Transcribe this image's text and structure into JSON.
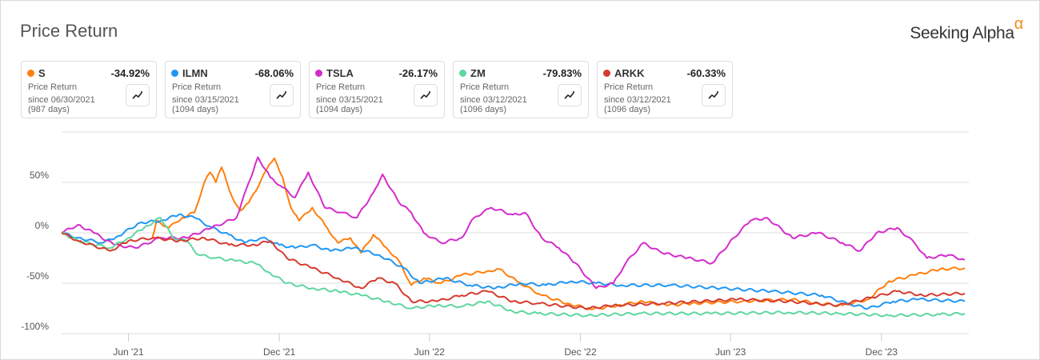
{
  "header": {
    "title": "Price Return",
    "logo": "Seeking Alpha",
    "logo_mark": "α"
  },
  "cards": [
    {
      "symbol": "S",
      "value": "-34.92%",
      "label": "Price Return",
      "since": "since 06/30/2021",
      "days": "(987 days)",
      "color": "#ff7f0e"
    },
    {
      "symbol": "ILMN",
      "value": "-68.06%",
      "label": "Price Return",
      "since": "since 03/15/2021",
      "days": "(1094 days)",
      "color": "#2196f3"
    },
    {
      "symbol": "TSLA",
      "value": "-26.17%",
      "label": "Price Return",
      "since": "since 03/15/2021",
      "days": "(1094 days)",
      "color": "#d42ccc"
    },
    {
      "symbol": "ZM",
      "value": "-79.83%",
      "label": "Price Return",
      "since": "since 03/12/2021",
      "days": "(1096 days)",
      "color": "#5fd6a0"
    },
    {
      "symbol": "ARKK",
      "value": "-60.33%",
      "label": "Price Return",
      "since": "since 03/12/2021",
      "days": "(1096 days)",
      "color": "#d63b30"
    }
  ],
  "chart_data": {
    "type": "line",
    "title": "Price Return",
    "xlim": [
      "2021-03-12",
      "2024-03-12"
    ],
    "ylim": [
      -100,
      100
    ],
    "yticks": [
      {
        "v": 50,
        "label": "50%"
      },
      {
        "v": 0,
        "label": "0%"
      },
      {
        "v": -50,
        "label": "-50%"
      },
      {
        "v": -100,
        "label": "-100%"
      }
    ],
    "xticks": [
      {
        "d": "2021-06-01",
        "label": "Jun '21"
      },
      {
        "d": "2021-12-01",
        "label": "Dec '21"
      },
      {
        "d": "2022-06-01",
        "label": "Jun '22"
      },
      {
        "d": "2022-12-01",
        "label": "Dec '22"
      },
      {
        "d": "2023-06-01",
        "label": "Jun '23"
      },
      {
        "d": "2023-12-01",
        "label": "Dec '23"
      }
    ],
    "grid": true,
    "series": [
      {
        "name": "S",
        "color": "#ff7f0e",
        "points": [
          [
            "2021-06-30",
            -5
          ],
          [
            "2021-07-05",
            12
          ],
          [
            "2021-07-20",
            5
          ],
          [
            "2021-08-05",
            15
          ],
          [
            "2021-08-20",
            20
          ],
          [
            "2021-09-01",
            50
          ],
          [
            "2021-09-08",
            60
          ],
          [
            "2021-09-15",
            50
          ],
          [
            "2021-09-22",
            65
          ],
          [
            "2021-10-05",
            35
          ],
          [
            "2021-10-15",
            22
          ],
          [
            "2021-10-25",
            30
          ],
          [
            "2021-11-05",
            45
          ],
          [
            "2021-11-15",
            62
          ],
          [
            "2021-11-25",
            74
          ],
          [
            "2021-12-05",
            55
          ],
          [
            "2021-12-15",
            25
          ],
          [
            "2021-12-25",
            12
          ],
          [
            "2022-01-10",
            25
          ],
          [
            "2022-01-25",
            8
          ],
          [
            "2022-02-10",
            -10
          ],
          [
            "2022-02-25",
            -5
          ],
          [
            "2022-03-10",
            -20
          ],
          [
            "2022-03-25",
            -2
          ],
          [
            "2022-04-10",
            -15
          ],
          [
            "2022-04-25",
            -28
          ],
          [
            "2022-05-10",
            -52
          ],
          [
            "2022-05-25",
            -45
          ],
          [
            "2022-06-15",
            -50
          ],
          [
            "2022-07-10",
            -42
          ],
          [
            "2022-08-10",
            -38
          ],
          [
            "2022-08-25",
            -36
          ],
          [
            "2022-09-15",
            -48
          ],
          [
            "2022-10-15",
            -62
          ],
          [
            "2022-11-15",
            -70
          ],
          [
            "2022-12-15",
            -76
          ],
          [
            "2023-01-15",
            -72
          ],
          [
            "2023-02-15",
            -68
          ],
          [
            "2023-03-15",
            -72
          ],
          [
            "2023-04-15",
            -70
          ],
          [
            "2023-06-15",
            -68
          ],
          [
            "2023-08-15",
            -66
          ],
          [
            "2023-09-15",
            -70
          ],
          [
            "2023-10-15",
            -72
          ],
          [
            "2023-11-15",
            -66
          ],
          [
            "2023-12-10",
            -48
          ],
          [
            "2024-01-10",
            -42
          ],
          [
            "2024-02-10",
            -36
          ],
          [
            "2024-03-11",
            -35
          ]
        ]
      },
      {
        "name": "ILMN",
        "color": "#2196f3",
        "points": [
          [
            "2021-03-12",
            0
          ],
          [
            "2021-04-01",
            -5
          ],
          [
            "2021-05-01",
            -10
          ],
          [
            "2021-05-20",
            -3
          ],
          [
            "2021-06-15",
            10
          ],
          [
            "2021-07-10",
            12
          ],
          [
            "2021-08-01",
            18
          ],
          [
            "2021-08-20",
            15
          ],
          [
            "2021-09-10",
            5
          ],
          [
            "2021-10-01",
            -2
          ],
          [
            "2021-10-20",
            -10
          ],
          [
            "2021-11-10",
            -5
          ],
          [
            "2021-12-01",
            -12
          ],
          [
            "2021-12-20",
            -15
          ],
          [
            "2022-01-10",
            -12
          ],
          [
            "2022-02-01",
            -18
          ],
          [
            "2022-03-01",
            -15
          ],
          [
            "2022-04-01",
            -22
          ],
          [
            "2022-05-01",
            -35
          ],
          [
            "2022-05-20",
            -50
          ],
          [
            "2022-06-20",
            -45
          ],
          [
            "2022-07-20",
            -52
          ],
          [
            "2022-08-20",
            -55
          ],
          [
            "2022-09-20",
            -50
          ],
          [
            "2022-10-20",
            -52
          ],
          [
            "2022-11-20",
            -48
          ],
          [
            "2022-12-20",
            -50
          ],
          [
            "2023-01-20",
            -52
          ],
          [
            "2023-03-20",
            -52
          ],
          [
            "2023-05-20",
            -55
          ],
          [
            "2023-07-20",
            -58
          ],
          [
            "2023-09-20",
            -62
          ],
          [
            "2023-10-20",
            -70
          ],
          [
            "2023-11-15",
            -75
          ],
          [
            "2023-12-15",
            -68
          ],
          [
            "2024-01-15",
            -66
          ],
          [
            "2024-03-11",
            -68
          ]
        ]
      },
      {
        "name": "TSLA",
        "color": "#d42ccc",
        "points": [
          [
            "2021-03-12",
            0
          ],
          [
            "2021-04-01",
            8
          ],
          [
            "2021-04-20",
            0
          ],
          [
            "2021-05-15",
            -12
          ],
          [
            "2021-06-10",
            -15
          ],
          [
            "2021-07-10",
            -5
          ],
          [
            "2021-08-10",
            -5
          ],
          [
            "2021-09-10",
            5
          ],
          [
            "2021-10-10",
            15
          ],
          [
            "2021-10-25",
            50
          ],
          [
            "2021-11-05",
            75
          ],
          [
            "2021-11-20",
            55
          ],
          [
            "2021-12-05",
            45
          ],
          [
            "2021-12-20",
            35
          ],
          [
            "2022-01-05",
            60
          ],
          [
            "2022-01-25",
            25
          ],
          [
            "2022-02-15",
            20
          ],
          [
            "2022-03-05",
            15
          ],
          [
            "2022-03-25",
            40
          ],
          [
            "2022-04-05",
            58
          ],
          [
            "2022-04-25",
            30
          ],
          [
            "2022-05-10",
            20
          ],
          [
            "2022-05-25",
            0
          ],
          [
            "2022-06-15",
            -10
          ],
          [
            "2022-07-10",
            -5
          ],
          [
            "2022-07-25",
            15
          ],
          [
            "2022-08-15",
            25
          ],
          [
            "2022-09-10",
            18
          ],
          [
            "2022-09-25",
            20
          ],
          [
            "2022-10-15",
            -5
          ],
          [
            "2022-11-05",
            -15
          ],
          [
            "2022-11-25",
            -30
          ],
          [
            "2022-12-20",
            -55
          ],
          [
            "2023-01-10",
            -50
          ],
          [
            "2023-01-25",
            -30
          ],
          [
            "2023-02-15",
            -10
          ],
          [
            "2023-03-10",
            -20
          ],
          [
            "2023-04-10",
            -25
          ],
          [
            "2023-05-10",
            -30
          ],
          [
            "2023-06-05",
            -5
          ],
          [
            "2023-06-25",
            12
          ],
          [
            "2023-07-15",
            15
          ],
          [
            "2023-08-15",
            -5
          ],
          [
            "2023-09-15",
            0
          ],
          [
            "2023-10-15",
            -10
          ],
          [
            "2023-11-05",
            -18
          ],
          [
            "2023-11-25",
            0
          ],
          [
            "2023-12-20",
            5
          ],
          [
            "2024-01-10",
            -10
          ],
          [
            "2024-01-25",
            -25
          ],
          [
            "2024-02-20",
            -22
          ],
          [
            "2024-03-11",
            -27
          ]
        ]
      },
      {
        "name": "ZM",
        "color": "#5fd6a0",
        "points": [
          [
            "2021-03-12",
            0
          ],
          [
            "2021-04-01",
            -8
          ],
          [
            "2021-05-10",
            -15
          ],
          [
            "2021-06-01",
            -5
          ],
          [
            "2021-06-20",
            5
          ],
          [
            "2021-07-10",
            15
          ],
          [
            "2021-07-25",
            -5
          ],
          [
            "2021-08-10",
            -8
          ],
          [
            "2021-08-25",
            -22
          ],
          [
            "2021-09-15",
            -25
          ],
          [
            "2021-10-10",
            -28
          ],
          [
            "2021-11-01",
            -30
          ],
          [
            "2021-11-20",
            -40
          ],
          [
            "2021-12-10",
            -50
          ],
          [
            "2022-01-10",
            -55
          ],
          [
            "2022-02-10",
            -58
          ],
          [
            "2022-03-10",
            -62
          ],
          [
            "2022-04-10",
            -68
          ],
          [
            "2022-05-10",
            -75
          ],
          [
            "2022-06-10",
            -72
          ],
          [
            "2022-07-10",
            -73
          ],
          [
            "2022-08-10",
            -68
          ],
          [
            "2022-09-10",
            -78
          ],
          [
            "2022-10-10",
            -80
          ],
          [
            "2022-12-10",
            -82
          ],
          [
            "2023-02-10",
            -80
          ],
          [
            "2023-05-10",
            -80
          ],
          [
            "2023-08-10",
            -79
          ],
          [
            "2023-10-10",
            -80
          ],
          [
            "2023-12-10",
            -82
          ],
          [
            "2024-02-10",
            -81
          ],
          [
            "2024-03-11",
            -80
          ]
        ]
      },
      {
        "name": "ARKK",
        "color": "#d63b30",
        "points": [
          [
            "2021-03-12",
            0
          ],
          [
            "2021-04-01",
            -8
          ],
          [
            "2021-05-10",
            -18
          ],
          [
            "2021-06-01",
            -8
          ],
          [
            "2021-07-01",
            -5
          ],
          [
            "2021-08-01",
            -8
          ],
          [
            "2021-09-01",
            -5
          ],
          [
            "2021-10-01",
            -12
          ],
          [
            "2021-11-01",
            -12
          ],
          [
            "2021-11-20",
            -8
          ],
          [
            "2021-12-10",
            -25
          ],
          [
            "2022-01-10",
            -35
          ],
          [
            "2022-02-10",
            -45
          ],
          [
            "2022-03-10",
            -55
          ],
          [
            "2022-03-30",
            -45
          ],
          [
            "2022-04-20",
            -50
          ],
          [
            "2022-05-10",
            -68
          ],
          [
            "2022-06-10",
            -68
          ],
          [
            "2022-07-10",
            -62
          ],
          [
            "2022-08-10",
            -58
          ],
          [
            "2022-09-10",
            -68
          ],
          [
            "2022-10-10",
            -70
          ],
          [
            "2022-12-10",
            -75
          ],
          [
            "2023-01-10",
            -72
          ],
          [
            "2023-03-10",
            -70
          ],
          [
            "2023-06-10",
            -66
          ],
          [
            "2023-08-10",
            -68
          ],
          [
            "2023-10-10",
            -72
          ],
          [
            "2023-11-20",
            -64
          ],
          [
            "2023-12-20",
            -58
          ],
          [
            "2024-01-20",
            -62
          ],
          [
            "2024-03-11",
            -60
          ]
        ]
      }
    ]
  }
}
